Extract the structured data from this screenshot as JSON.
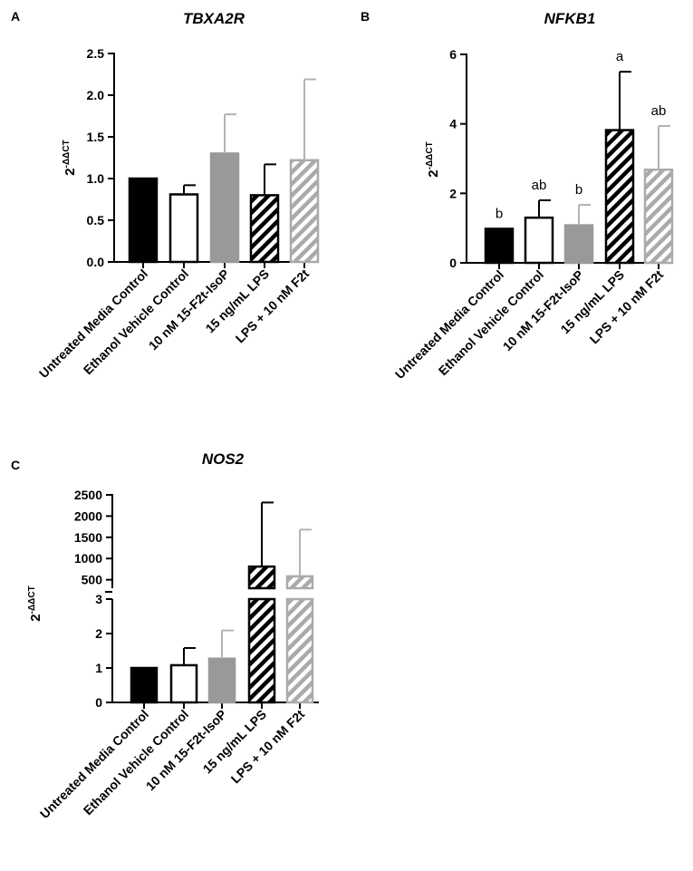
{
  "colors": {
    "black": "#000000",
    "white": "#ffffff",
    "gray": "#999999",
    "light_gray": "#aaaaaa",
    "light_gray_line": "#b3b3b3"
  },
  "chart_data": [
    {
      "panel": "A",
      "type": "bar",
      "title": "TBXA2R",
      "ylabel": "2",
      "ylabel_sup": "-ΔΔCT",
      "ylim": [
        0,
        2.5
      ],
      "yticks": [
        0.0,
        0.5,
        1.0,
        1.5,
        2.0,
        2.5
      ],
      "ytick_labels": [
        "0.0",
        "0.5",
        "1.0",
        "1.5",
        "2.0",
        "2.5"
      ],
      "categories": [
        "Untreated Media Control",
        "Ethanol Vehicle Control",
        "10 nM 15-F2t-IsoP",
        "15 ng/mL LPS",
        "LPS + 10 nM F2t"
      ],
      "values": [
        1.0,
        0.81,
        1.3,
        0.8,
        1.22
      ],
      "errors": [
        0.0,
        0.11,
        0.47,
        0.37,
        0.97
      ],
      "fills": [
        "black",
        "white",
        "gray",
        "black-hatch",
        "gray-hatch"
      ],
      "grid": false,
      "legend": "none"
    },
    {
      "panel": "B",
      "type": "bar",
      "title": "NFKB1",
      "ylabel": "2",
      "ylabel_sup": "-ΔΔCT",
      "ylim": [
        0,
        6
      ],
      "yticks": [
        0,
        2,
        4,
        6
      ],
      "ytick_labels": [
        "0",
        "2",
        "4",
        "6"
      ],
      "categories": [
        "Untreated Media Control",
        "Ethanol Vehicle Control",
        "10 nM 15-F2t-IsoP",
        "15 ng/mL LPS",
        "LPS + 10 nM F2t"
      ],
      "values": [
        0.98,
        1.3,
        1.08,
        3.82,
        2.68
      ],
      "errors": [
        0.0,
        0.5,
        0.59,
        1.68,
        1.26
      ],
      "annotations": [
        "b",
        "ab",
        "b",
        "a",
        "ab"
      ],
      "fills": [
        "black",
        "white",
        "gray",
        "black-hatch",
        "gray-hatch"
      ],
      "grid": false,
      "legend": "none"
    },
    {
      "panel": "C",
      "type": "bar",
      "title": "NOS2",
      "ylabel": "2",
      "ylabel_sup": "-ΔΔCT",
      "broken_axis": true,
      "ylim_lower": [
        0,
        3
      ],
      "yticks_lower": [
        0,
        1,
        2,
        3
      ],
      "ytick_labels_lower": [
        "0",
        "1",
        "2",
        "3"
      ],
      "ylim_upper": [
        300,
        2500
      ],
      "yticks_upper": [
        500,
        1000,
        1500,
        2000,
        2500
      ],
      "ytick_labels_upper": [
        "500",
        "1000",
        "1500",
        "2000",
        "2500"
      ],
      "categories": [
        "Untreated Media Control",
        "Ethanol Vehicle Control",
        "10 nM 15-F2t-IsoP",
        "15 ng/mL LPS",
        "LPS + 10 nM F2t"
      ],
      "values": [
        1.0,
        1.08,
        1.27,
        810,
        580
      ],
      "errors": [
        0.0,
        0.5,
        0.82,
        1510,
        1100
      ],
      "fills": [
        "black",
        "white",
        "gray",
        "black-hatch",
        "gray-hatch"
      ],
      "grid": false,
      "legend": "none"
    }
  ]
}
